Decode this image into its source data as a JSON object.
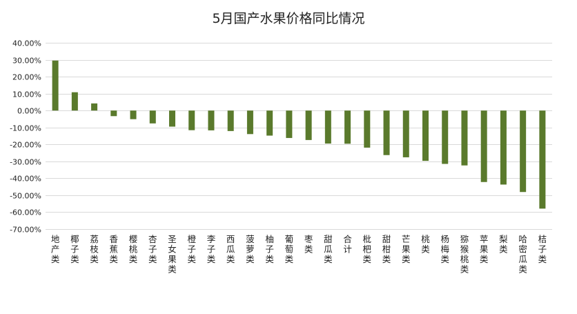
{
  "chart_data": {
    "type": "bar",
    "title": "5月国产水果价格同比情况",
    "xlabel": "",
    "ylabel": "",
    "ylim": [
      -70,
      40
    ],
    "ytick_step": 10,
    "ytick_format": "percent_2dp",
    "grid": true,
    "legend": "none",
    "bar_color": "#5a7a2c",
    "categories": [
      "地产类",
      "椰子类",
      "荔枝类",
      "香蕉类",
      "樱桃类",
      "杏子类",
      "圣女果类",
      "橙子类",
      "李子类",
      "西瓜类",
      "菠萝类",
      "柚子类",
      "葡萄类",
      "枣类",
      "甜瓜类",
      "合计",
      "枇杷类",
      "甜柑类",
      "芒果类",
      "桃类",
      "杨梅类",
      "猕猴桃类",
      "苹果类",
      "梨类",
      "哈密瓜类",
      "桔子类"
    ],
    "values": [
      29.5,
      10.8,
      4.2,
      -3.3,
      -5.1,
      -7.6,
      -9.5,
      -11.6,
      -11.7,
      -12.1,
      -13.9,
      -14.8,
      -16.2,
      -17.4,
      -19.5,
      -19.6,
      -21.9,
      -26.3,
      -27.6,
      -29.7,
      -31.5,
      -32.4,
      -42.2,
      -43.7,
      -48.1,
      -57.9
    ]
  }
}
